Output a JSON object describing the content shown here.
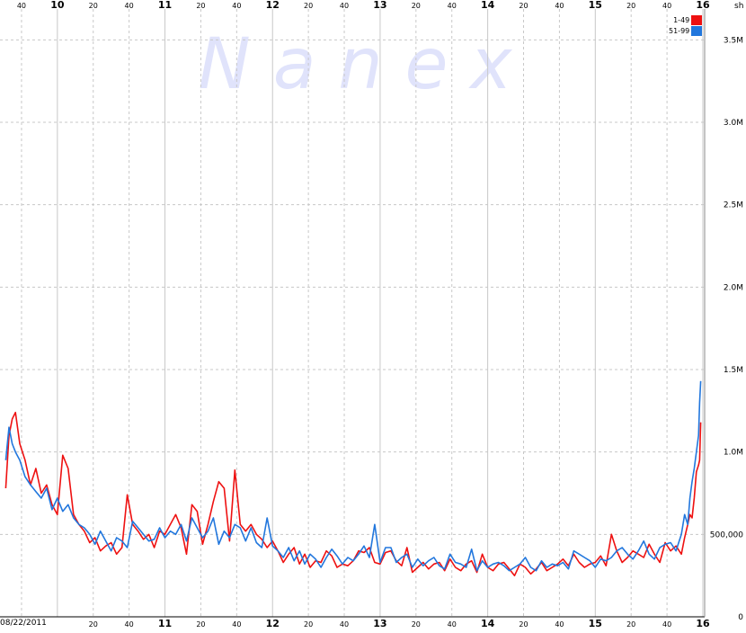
{
  "watermark": "N a n e x",
  "colors": {
    "series_1_49": "#ee1111",
    "series_51_99": "#2277dd",
    "watermark": "#e0e3fb",
    "grid": "#c8c8c8"
  },
  "chart_data": {
    "type": "line",
    "unit_label": "sh",
    "date_label": "08/22/2011",
    "ylim": [
      0,
      3600000
    ],
    "y_ticks": [
      {
        "value": 0,
        "label": "0"
      },
      {
        "value": 500000,
        "label": "500,000"
      },
      {
        "value": 1000000,
        "label": "1.0M"
      },
      {
        "value": 1500000,
        "label": "1.5M"
      },
      {
        "value": 2000000,
        "label": "2.0M"
      },
      {
        "value": 2500000,
        "label": "2.5M"
      },
      {
        "value": 3000000,
        "label": "3.0M"
      },
      {
        "value": 3500000,
        "label": "3.5M"
      }
    ],
    "xlim": [
      9.5,
      16.0
    ],
    "x_ticks_top": [
      {
        "value": 9.6667,
        "label": "40",
        "major": false
      },
      {
        "value": 10.0,
        "label": "10",
        "major": true
      },
      {
        "value": 10.3333,
        "label": "20",
        "major": false
      },
      {
        "value": 10.6667,
        "label": "40",
        "major": false
      },
      {
        "value": 11.0,
        "label": "11",
        "major": true
      },
      {
        "value": 11.3333,
        "label": "20",
        "major": false
      },
      {
        "value": 11.6667,
        "label": "40",
        "major": false
      },
      {
        "value": 12.0,
        "label": "12",
        "major": true
      },
      {
        "value": 12.3333,
        "label": "20",
        "major": false
      },
      {
        "value": 12.6667,
        "label": "40",
        "major": false
      },
      {
        "value": 13.0,
        "label": "13",
        "major": true
      },
      {
        "value": 13.3333,
        "label": "20",
        "major": false
      },
      {
        "value": 13.6667,
        "label": "40",
        "major": false
      },
      {
        "value": 14.0,
        "label": "14",
        "major": true
      },
      {
        "value": 14.3333,
        "label": "20",
        "major": false
      },
      {
        "value": 14.6667,
        "label": "40",
        "major": false
      },
      {
        "value": 15.0,
        "label": "15",
        "major": true
      },
      {
        "value": 15.3333,
        "label": "20",
        "major": false
      },
      {
        "value": 15.6667,
        "label": "40",
        "major": false
      },
      {
        "value": 16.0,
        "label": "16",
        "major": true
      }
    ],
    "x_ticks_bottom": [
      {
        "value": 10.3333,
        "label": "20",
        "major": false
      },
      {
        "value": 10.6667,
        "label": "40",
        "major": false
      },
      {
        "value": 11.0,
        "label": "11",
        "major": true
      },
      {
        "value": 11.3333,
        "label": "20",
        "major": false
      },
      {
        "value": 11.6667,
        "label": "40",
        "major": false
      },
      {
        "value": 12.0,
        "label": "12",
        "major": true
      },
      {
        "value": 12.3333,
        "label": "20",
        "major": false
      },
      {
        "value": 12.6667,
        "label": "40",
        "major": false
      },
      {
        "value": 13.0,
        "label": "13",
        "major": true
      },
      {
        "value": 13.3333,
        "label": "20",
        "major": false
      },
      {
        "value": 13.6667,
        "label": "40",
        "major": false
      },
      {
        "value": 14.0,
        "label": "14",
        "major": true
      },
      {
        "value": 14.3333,
        "label": "20",
        "major": false
      },
      {
        "value": 14.6667,
        "label": "40",
        "major": false
      },
      {
        "value": 15.0,
        "label": "15",
        "major": true
      },
      {
        "value": 15.3333,
        "label": "20",
        "major": false
      },
      {
        "value": 15.6667,
        "label": "40",
        "major": false
      },
      {
        "value": 16.0,
        "label": "16",
        "major": true
      }
    ],
    "grid": true,
    "legend_position": "top-right",
    "series": [
      {
        "name": "1-49",
        "color_key": "series_1_49",
        "x": [
          9.52,
          9.55,
          9.58,
          9.61,
          9.65,
          9.7,
          9.75,
          9.8,
          9.85,
          9.9,
          9.95,
          10.0,
          10.05,
          10.1,
          10.15,
          10.2,
          10.25,
          10.3,
          10.35,
          10.4,
          10.45,
          10.5,
          10.55,
          10.6,
          10.65,
          10.7,
          10.75,
          10.8,
          10.85,
          10.9,
          10.95,
          11.0,
          11.05,
          11.1,
          11.15,
          11.2,
          11.25,
          11.3,
          11.35,
          11.4,
          11.45,
          11.5,
          11.55,
          11.6,
          11.65,
          11.7,
          11.75,
          11.8,
          11.85,
          11.9,
          11.95,
          12.0,
          12.05,
          12.1,
          12.15,
          12.2,
          12.25,
          12.3,
          12.35,
          12.4,
          12.45,
          12.5,
          12.55,
          12.6,
          12.65,
          12.7,
          12.75,
          12.8,
          12.85,
          12.9,
          12.95,
          13.0,
          13.05,
          13.1,
          13.15,
          13.2,
          13.25,
          13.3,
          13.35,
          13.4,
          13.45,
          13.5,
          13.55,
          13.6,
          13.65,
          13.7,
          13.75,
          13.8,
          13.85,
          13.9,
          13.95,
          14.0,
          14.05,
          14.1,
          14.15,
          14.2,
          14.25,
          14.3,
          14.35,
          14.4,
          14.45,
          14.5,
          14.55,
          14.6,
          14.65,
          14.7,
          14.75,
          14.8,
          14.85,
          14.9,
          14.95,
          15.0,
          15.05,
          15.1,
          15.15,
          15.2,
          15.25,
          15.3,
          15.35,
          15.4,
          15.45,
          15.5,
          15.55,
          15.6,
          15.65,
          15.7,
          15.75,
          15.8,
          15.83,
          15.86,
          15.88,
          15.9,
          15.92,
          15.94,
          15.96,
          15.97,
          15.98
        ],
        "values": [
          780000,
          1100000,
          1200000,
          1240000,
          1050000,
          950000,
          800000,
          900000,
          750000,
          800000,
          680000,
          620000,
          980000,
          900000,
          620000,
          560000,
          520000,
          450000,
          480000,
          400000,
          430000,
          450000,
          380000,
          420000,
          740000,
          560000,
          520000,
          470000,
          500000,
          420000,
          520000,
          500000,
          560000,
          620000,
          540000,
          380000,
          680000,
          640000,
          440000,
          560000,
          700000,
          820000,
          780000,
          460000,
          890000,
          560000,
          520000,
          560000,
          500000,
          470000,
          420000,
          460000,
          400000,
          330000,
          380000,
          420000,
          320000,
          380000,
          300000,
          340000,
          330000,
          400000,
          370000,
          300000,
          320000,
          310000,
          340000,
          400000,
          390000,
          420000,
          330000,
          320000,
          390000,
          400000,
          340000,
          310000,
          420000,
          270000,
          300000,
          330000,
          290000,
          320000,
          330000,
          280000,
          350000,
          300000,
          280000,
          320000,
          340000,
          270000,
          380000,
          300000,
          280000,
          320000,
          330000,
          290000,
          250000,
          320000,
          300000,
          260000,
          290000,
          330000,
          280000,
          300000,
          320000,
          350000,
          310000,
          380000,
          330000,
          300000,
          320000,
          330000,
          370000,
          310000,
          500000,
          400000,
          330000,
          360000,
          400000,
          380000,
          360000,
          440000,
          380000,
          330000,
          450000,
          400000,
          430000,
          380000,
          480000,
          560000,
          620000,
          600000,
          720000,
          880000,
          920000,
          950000,
          1180000
        ]
      },
      {
        "name": "51-99",
        "color_key": "series_51_99",
        "x": [
          9.52,
          9.55,
          9.58,
          9.61,
          9.65,
          9.7,
          9.75,
          9.8,
          9.85,
          9.9,
          9.95,
          10.0,
          10.05,
          10.1,
          10.15,
          10.2,
          10.25,
          10.3,
          10.35,
          10.4,
          10.45,
          10.5,
          10.55,
          10.6,
          10.65,
          10.7,
          10.75,
          10.8,
          10.85,
          10.9,
          10.95,
          11.0,
          11.05,
          11.1,
          11.15,
          11.2,
          11.25,
          11.3,
          11.35,
          11.4,
          11.45,
          11.5,
          11.55,
          11.6,
          11.65,
          11.7,
          11.75,
          11.8,
          11.85,
          11.9,
          11.95,
          12.0,
          12.05,
          12.1,
          12.15,
          12.2,
          12.25,
          12.3,
          12.35,
          12.4,
          12.45,
          12.5,
          12.55,
          12.6,
          12.65,
          12.7,
          12.75,
          12.8,
          12.85,
          12.9,
          12.95,
          13.0,
          13.05,
          13.1,
          13.15,
          13.2,
          13.25,
          13.3,
          13.35,
          13.4,
          13.45,
          13.5,
          13.55,
          13.6,
          13.65,
          13.7,
          13.75,
          13.8,
          13.85,
          13.9,
          13.95,
          14.0,
          14.05,
          14.1,
          14.15,
          14.2,
          14.25,
          14.3,
          14.35,
          14.4,
          14.45,
          14.5,
          14.55,
          14.6,
          14.65,
          14.7,
          14.75,
          14.8,
          14.85,
          14.9,
          14.95,
          15.0,
          15.05,
          15.1,
          15.15,
          15.2,
          15.25,
          15.3,
          15.35,
          15.4,
          15.45,
          15.5,
          15.55,
          15.6,
          15.65,
          15.7,
          15.75,
          15.8,
          15.83,
          15.86,
          15.88,
          15.9,
          15.92,
          15.94,
          15.96,
          15.97,
          15.98
        ],
        "values": [
          950000,
          1150000,
          1050000,
          1000000,
          950000,
          850000,
          800000,
          760000,
          720000,
          780000,
          650000,
          720000,
          640000,
          680000,
          600000,
          560000,
          540000,
          500000,
          440000,
          520000,
          460000,
          400000,
          480000,
          460000,
          420000,
          580000,
          540000,
          500000,
          460000,
          470000,
          540000,
          480000,
          520000,
          500000,
          560000,
          460000,
          600000,
          540000,
          480000,
          520000,
          600000,
          440000,
          520000,
          480000,
          560000,
          540000,
          460000,
          540000,
          450000,
          420000,
          600000,
          430000,
          400000,
          360000,
          420000,
          340000,
          400000,
          320000,
          380000,
          350000,
          300000,
          360000,
          410000,
          370000,
          320000,
          360000,
          340000,
          380000,
          430000,
          360000,
          560000,
          330000,
          420000,
          420000,
          330000,
          360000,
          380000,
          300000,
          350000,
          310000,
          340000,
          360000,
          310000,
          290000,
          380000,
          330000,
          320000,
          300000,
          410000,
          280000,
          340000,
          300000,
          320000,
          330000,
          310000,
          280000,
          300000,
          320000,
          360000,
          300000,
          280000,
          340000,
          300000,
          320000,
          310000,
          330000,
          290000,
          400000,
          380000,
          360000,
          340000,
          300000,
          350000,
          340000,
          360000,
          400000,
          420000,
          380000,
          350000,
          400000,
          460000,
          380000,
          350000,
          420000,
          440000,
          450000,
          400000,
          500000,
          620000,
          560000,
          720000,
          820000,
          900000,
          1000000,
          1100000,
          1300000,
          1430000
        ]
      }
    ]
  }
}
